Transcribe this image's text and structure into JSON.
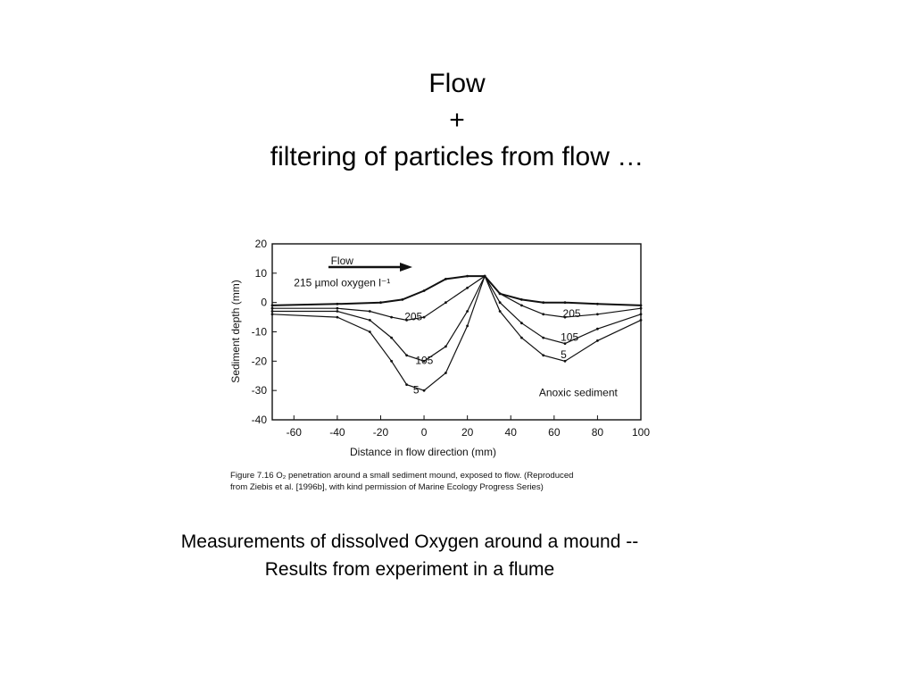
{
  "slide": {
    "title_lines": [
      "Flow",
      "+",
      "filtering of particles from flow …"
    ],
    "caption_lines": [
      "Measurements of dissolved Oxygen around a mound --",
      "Results from experiment in a flume"
    ]
  },
  "chart_data": {
    "type": "line",
    "xlabel": "Distance in flow direction (mm)",
    "ylabel": "Sediment depth (mm)",
    "xlim": [
      -70,
      100
    ],
    "ylim": [
      -40,
      20
    ],
    "x_ticks": [
      "-60",
      "-40",
      "-20",
      "0",
      "20",
      "40",
      "60",
      "80",
      "100"
    ],
    "y_ticks": [
      "20",
      "10",
      "0",
      "-10",
      "-20",
      "-30",
      "-40"
    ],
    "grid": false,
    "series": [
      {
        "name": "215 µmol oxygen l⁻¹",
        "x": [
          -70,
          -40,
          -20,
          -10,
          0,
          10,
          20,
          28,
          35,
          45,
          55,
          65,
          80,
          100
        ],
        "y": [
          -1,
          -0.5,
          0,
          1,
          4,
          8,
          9,
          9,
          3,
          1,
          0,
          0,
          -0.5,
          -1
        ]
      },
      {
        "name": "205",
        "x": [
          -70,
          -40,
          -25,
          -15,
          -8,
          0,
          10,
          20,
          28,
          35,
          45,
          55,
          65,
          80,
          100
        ],
        "y": [
          -2,
          -2,
          -3,
          -5,
          -6,
          -5,
          0,
          5,
          9,
          3,
          -1,
          -4,
          -5,
          -4,
          -2
        ]
      },
      {
        "name": "105",
        "x": [
          -70,
          -40,
          -25,
          -15,
          -8,
          0,
          10,
          20,
          28,
          35,
          45,
          55,
          65,
          80,
          100
        ],
        "y": [
          -3,
          -3,
          -6,
          -12,
          -18,
          -20,
          -15,
          -3,
          9,
          0,
          -7,
          -12,
          -14,
          -9,
          -4
        ]
      },
      {
        "name": "5",
        "x": [
          -70,
          -40,
          -25,
          -15,
          -8,
          0,
          10,
          20,
          28,
          35,
          45,
          55,
          65,
          80,
          100
        ],
        "y": [
          -4,
          -5,
          -10,
          -20,
          -28,
          -30,
          -24,
          -8,
          9,
          -3,
          -12,
          -18,
          -20,
          -13,
          -6
        ]
      }
    ],
    "annotations": [
      {
        "text": "Flow",
        "x": -43,
        "y": 13
      },
      {
        "text": "205",
        "x": -9,
        "y": -6
      },
      {
        "text": "105",
        "x": -4,
        "y": -21
      },
      {
        "text": "5",
        "x": -5,
        "y": -31
      },
      {
        "text": "205",
        "x": 64,
        "y": -5
      },
      {
        "text": "105",
        "x": 63,
        "y": -13
      },
      {
        "text": "5",
        "x": 63,
        "y": -19
      },
      {
        "text": "Anoxic sediment",
        "x": 53,
        "y": -32
      }
    ],
    "figure_caption": [
      "Figure 7.16 O₂ penetration around a small sediment mound, exposed to flow. (Reproduced",
      "from Ziebis et al. [1996b], with kind permission of Marine Ecology Progress Series)"
    ],
    "colors": {
      "ink": "#111111"
    }
  }
}
